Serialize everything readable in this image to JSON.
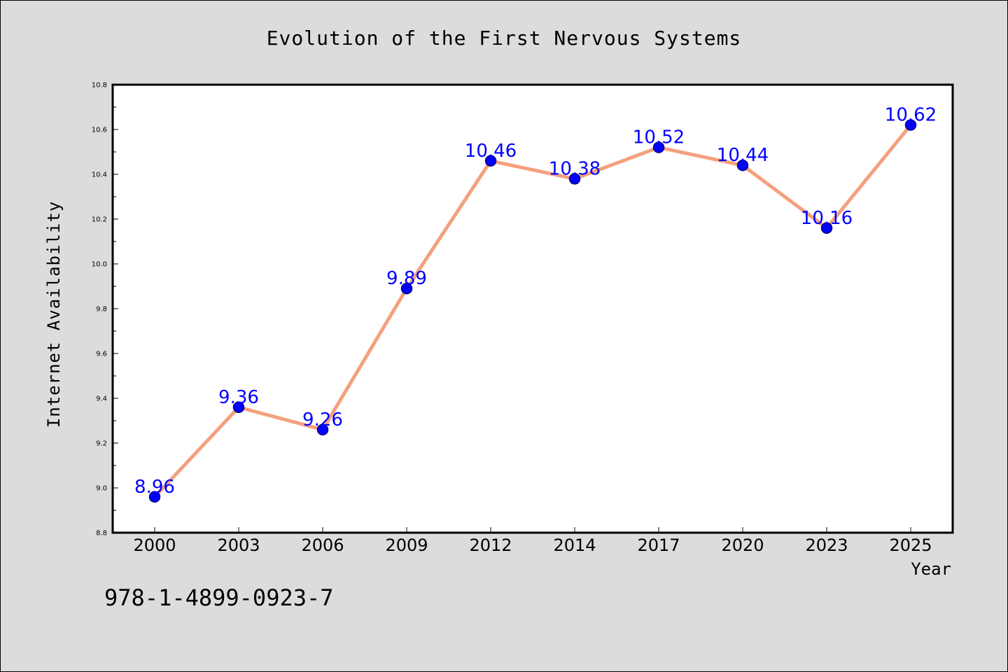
{
  "chart_data": {
    "type": "line",
    "title": "Evolution of the First Nervous Systems",
    "xlabel": "Year",
    "ylabel": "Internet Availability",
    "categories": [
      "2000",
      "2003",
      "2006",
      "2009",
      "2012",
      "2014",
      "2017",
      "2020",
      "2023",
      "2025"
    ],
    "series": [
      {
        "values": [
          8.96,
          9.36,
          9.26,
          9.89,
          10.46,
          10.38,
          10.52,
          10.44,
          10.16,
          10.62
        ],
        "data_labels": [
          "8.96",
          "9.36",
          "9.26",
          "9.89",
          "10.46",
          "10.38",
          "10.52",
          "10.44",
          "10.16",
          "10.62"
        ]
      }
    ],
    "ylim": [
      8.8,
      10.8
    ],
    "yticks": [
      "8.8",
      "9.0",
      "9.2",
      "9.4",
      "9.6",
      "9.8",
      "10.0",
      "10.2",
      "10.4",
      "10.6",
      "10.8"
    ],
    "grid": false,
    "colors": {
      "line": "#f4a07e",
      "marker": "#0000ff",
      "marker_edge": "#000080",
      "data_label": "#0000ff",
      "plot_background": "#ffffff",
      "figure_background": "#dcdcdc"
    }
  },
  "annotation": {
    "isbn": "978-1-4899-0923-7"
  }
}
